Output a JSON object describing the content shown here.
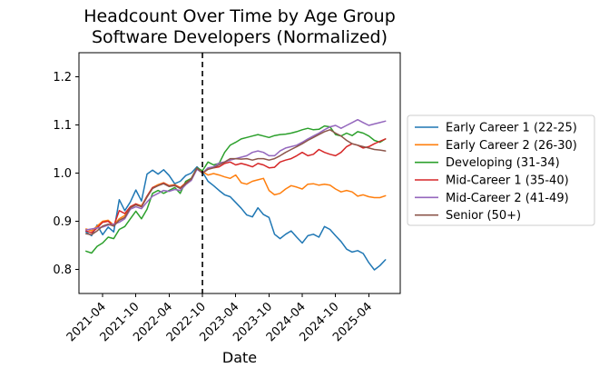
{
  "chart_data": {
    "type": "line",
    "title": "Headcount Over Time by Age Group",
    "subtitle": "Software Developers (Normalized)",
    "xlabel": "Date",
    "ylabel": "",
    "grid": false,
    "legend_position": "right",
    "ylim": [
      0.75,
      1.25
    ],
    "ytick_labels": [
      "0.8",
      "0.9",
      "1.0",
      "1.1",
      "1.2"
    ],
    "xtick_labels": [
      "2021-04",
      "2021-10",
      "2022-04",
      "2022-10",
      "2023-04",
      "2023-10",
      "2024-04",
      "2024-10",
      "2025-04"
    ],
    "x": [
      "2021-01",
      "2021-02",
      "2021-03",
      "2021-04",
      "2021-05",
      "2021-06",
      "2021-07",
      "2021-08",
      "2021-09",
      "2021-10",
      "2021-11",
      "2021-12",
      "2022-01",
      "2022-02",
      "2022-03",
      "2022-04",
      "2022-05",
      "2022-06",
      "2022-07",
      "2022-08",
      "2022-09",
      "2022-10",
      "2022-11",
      "2022-12",
      "2023-01",
      "2023-02",
      "2023-03",
      "2023-04",
      "2023-05",
      "2023-06",
      "2023-07",
      "2023-08",
      "2023-09",
      "2023-10",
      "2023-11",
      "2023-12",
      "2024-01",
      "2024-02",
      "2024-03",
      "2024-04",
      "2024-05",
      "2024-06",
      "2024-07",
      "2024-08",
      "2024-09",
      "2024-10",
      "2024-11",
      "2024-12",
      "2025-01",
      "2025-02",
      "2025-03",
      "2025-04",
      "2025-05",
      "2025-06",
      "2025-07"
    ],
    "event_line": {
      "x": "2022-10",
      "style": "dashed",
      "color": "#000000"
    },
    "series": [
      {
        "name": "Early Career 1 (22-25)",
        "color": "#1f77b4",
        "values": [
          0.878,
          0.87,
          0.892,
          0.872,
          0.888,
          0.878,
          0.945,
          0.922,
          0.94,
          0.965,
          0.942,
          0.998,
          1.006,
          0.998,
          1.007,
          0.995,
          0.978,
          0.983,
          0.995,
          1.0,
          1.013,
          1.002,
          0.983,
          0.974,
          0.964,
          0.955,
          0.951,
          0.939,
          0.927,
          0.913,
          0.909,
          0.928,
          0.914,
          0.908,
          0.873,
          0.864,
          0.873,
          0.88,
          0.867,
          0.855,
          0.87,
          0.873,
          0.867,
          0.889,
          0.883,
          0.87,
          0.858,
          0.842,
          0.836,
          0.839,
          0.833,
          0.814,
          0.799,
          0.808,
          0.82
        ]
      },
      {
        "name": "Early Career 2 (26-30)",
        "color": "#ff7f0e",
        "values": [
          0.884,
          0.88,
          0.89,
          0.9,
          0.902,
          0.892,
          0.905,
          0.912,
          0.93,
          0.936,
          0.932,
          0.952,
          0.97,
          0.976,
          0.98,
          0.974,
          0.976,
          0.97,
          0.98,
          0.989,
          1.011,
          1.003,
          0.996,
          0.999,
          0.996,
          0.992,
          0.989,
          0.996,
          0.98,
          0.977,
          0.983,
          0.986,
          0.989,
          0.964,
          0.955,
          0.958,
          0.967,
          0.974,
          0.971,
          0.967,
          0.977,
          0.978,
          0.975,
          0.977,
          0.975,
          0.967,
          0.961,
          0.964,
          0.961,
          0.952,
          0.955,
          0.951,
          0.949,
          0.949,
          0.953
        ]
      },
      {
        "name": "Developing (31-34)",
        "color": "#2ca02c",
        "values": [
          0.838,
          0.834,
          0.848,
          0.855,
          0.867,
          0.864,
          0.883,
          0.889,
          0.905,
          0.921,
          0.905,
          0.925,
          0.958,
          0.964,
          0.958,
          0.964,
          0.97,
          0.958,
          0.983,
          0.989,
          1.011,
          1.005,
          1.023,
          1.017,
          1.02,
          1.043,
          1.058,
          1.064,
          1.071,
          1.074,
          1.077,
          1.08,
          1.077,
          1.074,
          1.078,
          1.08,
          1.081,
          1.083,
          1.086,
          1.09,
          1.093,
          1.09,
          1.091,
          1.098,
          1.096,
          1.08,
          1.077,
          1.083,
          1.078,
          1.086,
          1.083,
          1.077,
          1.068,
          1.064,
          1.071
        ]
      },
      {
        "name": "Mid-Career 1 (35-40)",
        "color": "#d62728",
        "values": [
          0.88,
          0.876,
          0.886,
          0.898,
          0.9,
          0.89,
          0.922,
          0.916,
          0.93,
          0.936,
          0.93,
          0.952,
          0.97,
          0.974,
          0.979,
          0.973,
          0.975,
          0.969,
          0.979,
          0.988,
          1.01,
          1.0,
          1.008,
          1.011,
          1.013,
          1.02,
          1.023,
          1.017,
          1.02,
          1.017,
          1.013,
          1.02,
          1.017,
          1.011,
          1.012,
          1.023,
          1.027,
          1.03,
          1.036,
          1.043,
          1.036,
          1.039,
          1.049,
          1.043,
          1.039,
          1.036,
          1.043,
          1.055,
          1.061,
          1.058,
          1.052,
          1.055,
          1.061,
          1.066,
          1.071
        ]
      },
      {
        "name": "Mid-Career 2 (41-49)",
        "color": "#9467bd",
        "values": [
          0.882,
          0.884,
          0.886,
          0.888,
          0.892,
          0.894,
          0.898,
          0.905,
          0.925,
          0.93,
          0.926,
          0.94,
          0.952,
          0.958,
          0.964,
          0.962,
          0.966,
          0.964,
          0.976,
          0.985,
          1.008,
          1.0,
          1.011,
          1.013,
          1.021,
          1.023,
          1.027,
          1.03,
          1.033,
          1.036,
          1.043,
          1.046,
          1.043,
          1.036,
          1.036,
          1.046,
          1.052,
          1.055,
          1.058,
          1.064,
          1.071,
          1.077,
          1.083,
          1.09,
          1.096,
          1.099,
          1.093,
          1.099,
          1.105,
          1.111,
          1.105,
          1.099,
          1.102,
          1.105,
          1.108
        ]
      },
      {
        "name": "Senior (50+)",
        "color": "#8c564b",
        "values": [
          0.874,
          0.872,
          0.88,
          0.89,
          0.894,
          0.89,
          0.902,
          0.908,
          0.928,
          0.934,
          0.93,
          0.95,
          0.968,
          0.974,
          0.978,
          0.972,
          0.974,
          0.968,
          0.978,
          0.988,
          1.01,
          1.0,
          1.008,
          1.011,
          1.017,
          1.023,
          1.03,
          1.03,
          1.029,
          1.03,
          1.027,
          1.03,
          1.03,
          1.027,
          1.03,
          1.036,
          1.043,
          1.049,
          1.055,
          1.061,
          1.068,
          1.074,
          1.08,
          1.086,
          1.09,
          1.083,
          1.077,
          1.068,
          1.061,
          1.058,
          1.055,
          1.052,
          1.049,
          1.048,
          1.046
        ]
      }
    ]
  }
}
